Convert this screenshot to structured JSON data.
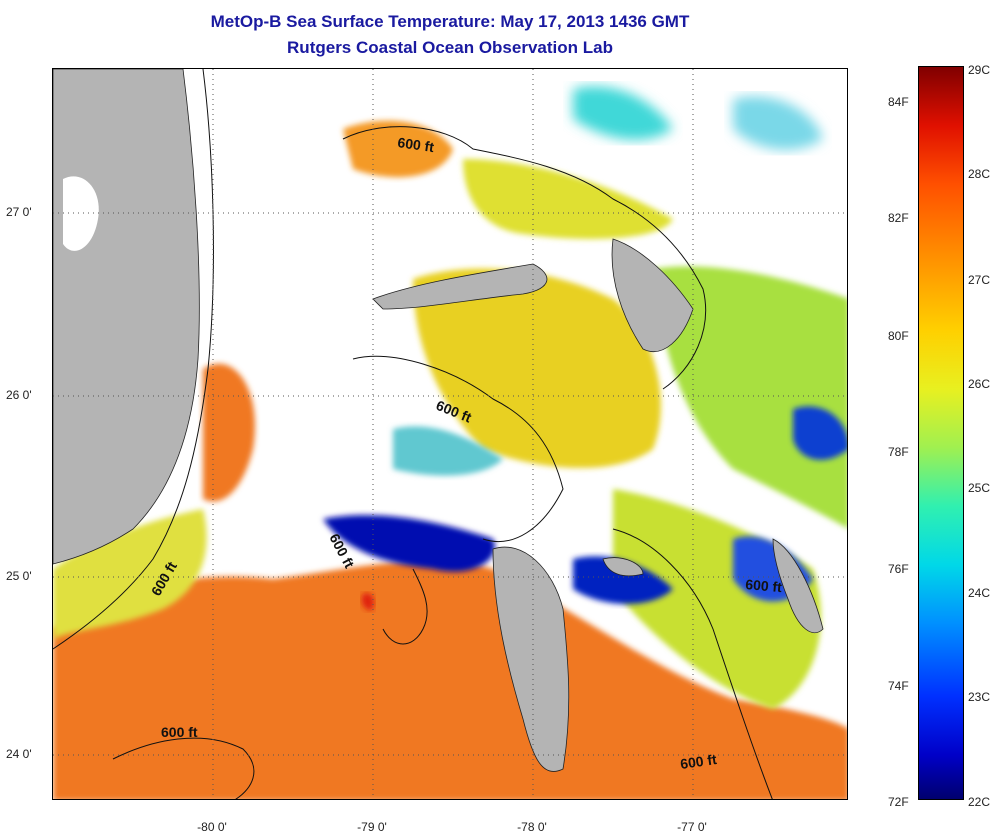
{
  "title": {
    "line1": "MetOp-B Sea Surface Temperature:  May 17, 2013 1436 GMT",
    "line2": "Rutgers Coastal Ocean Observation Lab"
  },
  "map": {
    "latitude_labels": [
      "27 0'",
      "26 0'",
      "25 0'",
      "24 0'"
    ],
    "longitude_labels": [
      "-80 0'",
      "-79 0'",
      "-78 0'",
      "-77 0'"
    ],
    "contour_labels": [
      "600 ft",
      "600 ft",
      "600 ft",
      "600 ft",
      "600 ft",
      "600 ft",
      "600 ft"
    ],
    "colors": {
      "land": "#b4b4b4",
      "cloud_no_data": "#ffffff",
      "warm": "#f07820",
      "mid": "#e8e020",
      "cool": "#40d8b0",
      "cold": "#0000a0"
    }
  },
  "colorbar": {
    "celsius_labels": [
      "29C",
      "28C",
      "27C",
      "26C",
      "25C",
      "24C",
      "23C",
      "22C"
    ],
    "fahrenheit_labels": [
      "84F",
      "82F",
      "80F",
      "78F",
      "76F",
      "74F",
      "72F"
    ],
    "range_celsius": [
      22,
      29
    ]
  }
}
